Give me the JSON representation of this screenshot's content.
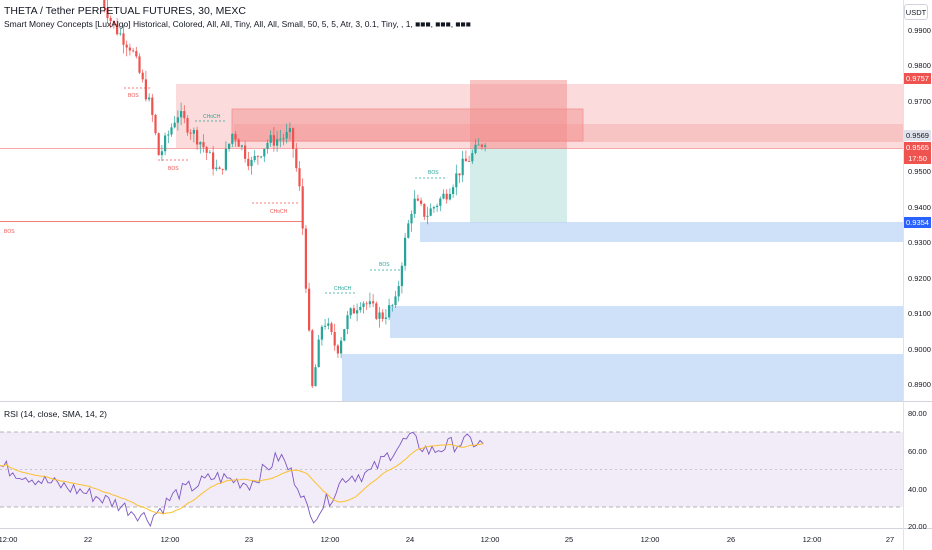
{
  "header": {
    "symbol_title": "THETA / Tether PERPETUAL FUTURES, 30, MEXC",
    "indicator_title": "Smart Money Concepts [LuxAlgo] Historical, Colored, All, All, Tiny, All, All, Small, 50, 5, 5, Atr, 3, 0.1, Tiny, , 1, ■■■, ■■■, ■■■",
    "currency": "USDT"
  },
  "price_axis": {
    "ticks": [
      "0.9900",
      "0.9800",
      "0.9700",
      "0.9600",
      "0.9500",
      "0.9400",
      "0.9300",
      "0.9200",
      "0.9100",
      "0.9000",
      "0.8900"
    ],
    "tags": {
      "top_zone": "0.9757",
      "last_price": "0.9569",
      "close_price": "0.9565",
      "countdown": "17:50",
      "target": "0.9354"
    }
  },
  "rsi": {
    "title": "RSI (14, close, SMA, 14, 2)",
    "ticks": [
      "80.00",
      "60.00",
      "40.00",
      "20.00"
    ],
    "band_upper": 70,
    "band_middle": 50,
    "band_lower": 30
  },
  "time_axis": {
    "ticks": [
      "12:00",
      "22",
      "12:00",
      "23",
      "12:00",
      "24",
      "12:00",
      "25",
      "12:00",
      "26",
      "12:00",
      "27"
    ]
  },
  "annotations": {
    "bos_label": "BOS",
    "choch_label": "CHoCH"
  },
  "colors": {
    "up": "#26a69a",
    "down": "#ef5350",
    "supply_zone": "#f7b7b7",
    "demand_zone": "#bbd3f7",
    "rsi_line": "#7e57c2",
    "rsi_ma": "#fbc02d"
  },
  "chart_data": {
    "type": "candlestick",
    "ohlc_samples": [
      {
        "time": "22 00:00",
        "close": 0.99
      },
      {
        "time": "22 12:00",
        "close": 0.959
      },
      {
        "time": "23 00:00",
        "close": 0.956
      },
      {
        "time": "23 12:00",
        "close": 0.92
      },
      {
        "time": "23 14:00",
        "close": 0.888
      },
      {
        "time": "23 18:00",
        "close": 0.908
      },
      {
        "time": "24 00:00",
        "close": 0.942
      },
      {
        "time": "24 12:00",
        "close": 0.9569
      }
    ],
    "last_price": 0.9569,
    "ylim": [
      0.885,
      0.995
    ],
    "rsi_range": [
      18,
      82
    ]
  }
}
